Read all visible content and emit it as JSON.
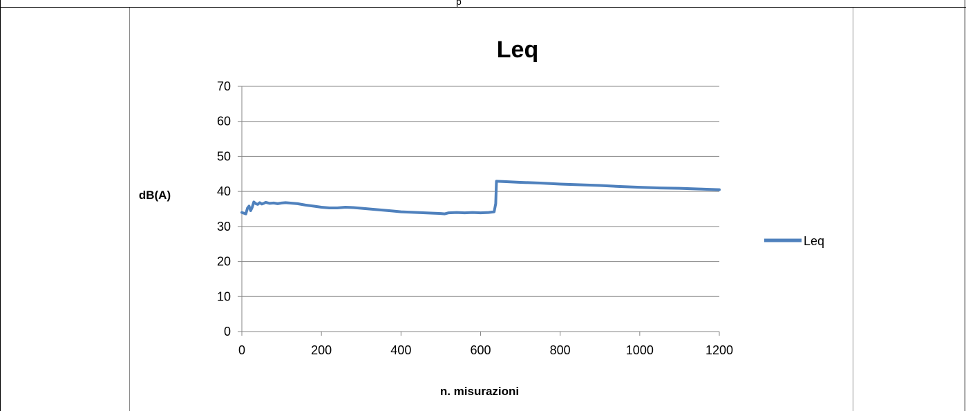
{
  "header": {
    "cell_text": "p"
  },
  "chart_data": {
    "type": "line",
    "title": "Leq",
    "xlabel": "n. misurazioni",
    "ylabel": "dB(A)",
    "xlim": [
      0,
      1200
    ],
    "ylim": [
      0,
      70
    ],
    "x_ticks": [
      "0",
      "200",
      "400",
      "600",
      "800",
      "1000",
      "1200"
    ],
    "y_ticks": [
      "0",
      "10",
      "20",
      "30",
      "40",
      "50",
      "60",
      "70"
    ],
    "grid": "horizontal",
    "legend": "right",
    "series": [
      {
        "name": "Leq",
        "color": "#4f81bd",
        "points": [
          [
            0,
            34.0
          ],
          [
            5,
            33.8
          ],
          [
            10,
            33.6
          ],
          [
            14,
            35.2
          ],
          [
            18,
            35.8
          ],
          [
            22,
            34.5
          ],
          [
            26,
            35.5
          ],
          [
            30,
            37.0
          ],
          [
            35,
            36.5
          ],
          [
            40,
            36.3
          ],
          [
            45,
            36.8
          ],
          [
            50,
            36.4
          ],
          [
            55,
            36.6
          ],
          [
            60,
            36.9
          ],
          [
            70,
            36.6
          ],
          [
            80,
            36.7
          ],
          [
            90,
            36.5
          ],
          [
            100,
            36.7
          ],
          [
            110,
            36.8
          ],
          [
            120,
            36.7
          ],
          [
            140,
            36.5
          ],
          [
            160,
            36.1
          ],
          [
            180,
            35.8
          ],
          [
            200,
            35.5
          ],
          [
            220,
            35.3
          ],
          [
            240,
            35.3
          ],
          [
            260,
            35.5
          ],
          [
            280,
            35.4
          ],
          [
            300,
            35.2
          ],
          [
            320,
            35.0
          ],
          [
            340,
            34.8
          ],
          [
            360,
            34.6
          ],
          [
            380,
            34.4
          ],
          [
            400,
            34.2
          ],
          [
            420,
            34.1
          ],
          [
            440,
            34.0
          ],
          [
            460,
            33.9
          ],
          [
            480,
            33.8
          ],
          [
            500,
            33.7
          ],
          [
            510,
            33.6
          ],
          [
            520,
            33.9
          ],
          [
            540,
            34.0
          ],
          [
            560,
            33.9
          ],
          [
            580,
            34.0
          ],
          [
            600,
            33.9
          ],
          [
            620,
            34.0
          ],
          [
            634,
            34.2
          ],
          [
            638,
            36.5
          ],
          [
            640,
            42.9
          ],
          [
            660,
            42.8
          ],
          [
            700,
            42.6
          ],
          [
            750,
            42.4
          ],
          [
            800,
            42.1
          ],
          [
            850,
            41.9
          ],
          [
            900,
            41.7
          ],
          [
            950,
            41.4
          ],
          [
            1000,
            41.2
          ],
          [
            1050,
            41.0
          ],
          [
            1100,
            40.9
          ],
          [
            1150,
            40.7
          ],
          [
            1200,
            40.5
          ]
        ]
      }
    ]
  }
}
